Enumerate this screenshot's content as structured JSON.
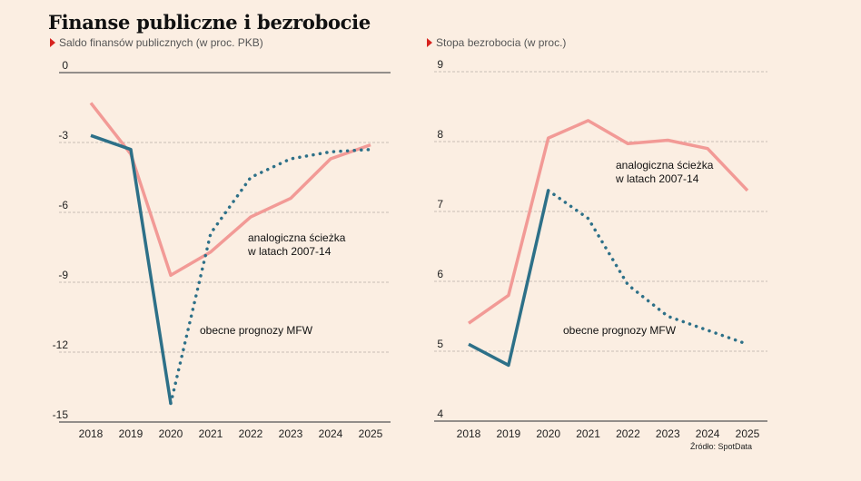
{
  "title": "Finanse publiczne i bezrobocie",
  "source": "Źródło: SpotData",
  "colors": {
    "background": "#fbeee2",
    "analog": "#f29a96",
    "forecast": "#2d7088",
    "marker": "#d7231e"
  },
  "chart_data": [
    {
      "type": "line",
      "subtitle": "Saldo finansów publicznych (w proc. PKB)",
      "categories": [
        "2018",
        "2019",
        "2020",
        "2021",
        "2022",
        "2023",
        "2024",
        "2025"
      ],
      "ylim": [
        -15,
        0
      ],
      "yticks": [
        0,
        -3,
        -6,
        -9,
        -12,
        -15
      ],
      "ytick_labels": [
        "0",
        "-3",
        "-6",
        "-9",
        "-12",
        "-15"
      ],
      "grid": true,
      "series": [
        {
          "name": "analogiczna ścieżka\nw latach 2007-14",
          "role": "analog",
          "style": "solid",
          "values": [
            -1.3,
            -3.5,
            -8.7,
            -7.7,
            -6.2,
            -5.4,
            -3.7,
            -3.1
          ]
        },
        {
          "name": "obecne prognozy MFW",
          "role": "forecast-actual",
          "style": "solid",
          "values": [
            -2.7,
            -3.3,
            -14.2,
            null,
            null,
            null,
            null,
            null
          ]
        },
        {
          "name": "obecne prognozy MFW",
          "role": "forecast-projection",
          "style": "dotted",
          "values": [
            null,
            null,
            -14.2,
            -6.9,
            -4.5,
            -3.7,
            -3.4,
            -3.3
          ]
        }
      ],
      "annotations": [
        {
          "text": "analogiczna ścieżka",
          "near": "analog"
        },
        {
          "text": "w latach 2007-14",
          "near": "analog"
        },
        {
          "text": "obecne prognozy MFW",
          "near": "forecast"
        }
      ]
    },
    {
      "type": "line",
      "subtitle": "Stopa bezrobocia (w proc.)",
      "categories": [
        "2018",
        "2019",
        "2020",
        "2021",
        "2022",
        "2023",
        "2024",
        "2025"
      ],
      "ylim": [
        4,
        9
      ],
      "yticks": [
        9,
        8,
        7,
        6,
        5,
        4
      ],
      "ytick_labels": [
        "9",
        "8",
        "7",
        "6",
        "5",
        "4"
      ],
      "grid": true,
      "series": [
        {
          "name": "analogiczna ścieżka\nw latach 2007-14",
          "role": "analog",
          "style": "solid",
          "values": [
            5.4,
            5.8,
            8.05,
            8.3,
            7.97,
            8.02,
            7.9,
            7.3
          ]
        },
        {
          "name": "obecne prognozy MFW",
          "role": "forecast-actual",
          "style": "solid",
          "values": [
            5.1,
            4.8,
            7.3,
            null,
            null,
            null,
            null,
            null
          ]
        },
        {
          "name": "obecne prognozy MFW",
          "role": "forecast-projection",
          "style": "dotted",
          "values": [
            null,
            null,
            7.3,
            6.9,
            5.95,
            5.5,
            5.3,
            5.1
          ]
        }
      ],
      "annotations": [
        {
          "text": "analogiczna ścieżka",
          "near": "analog"
        },
        {
          "text": "w latach 2007-14",
          "near": "analog"
        },
        {
          "text": "obecne prognozy MFW",
          "near": "forecast"
        }
      ]
    }
  ]
}
